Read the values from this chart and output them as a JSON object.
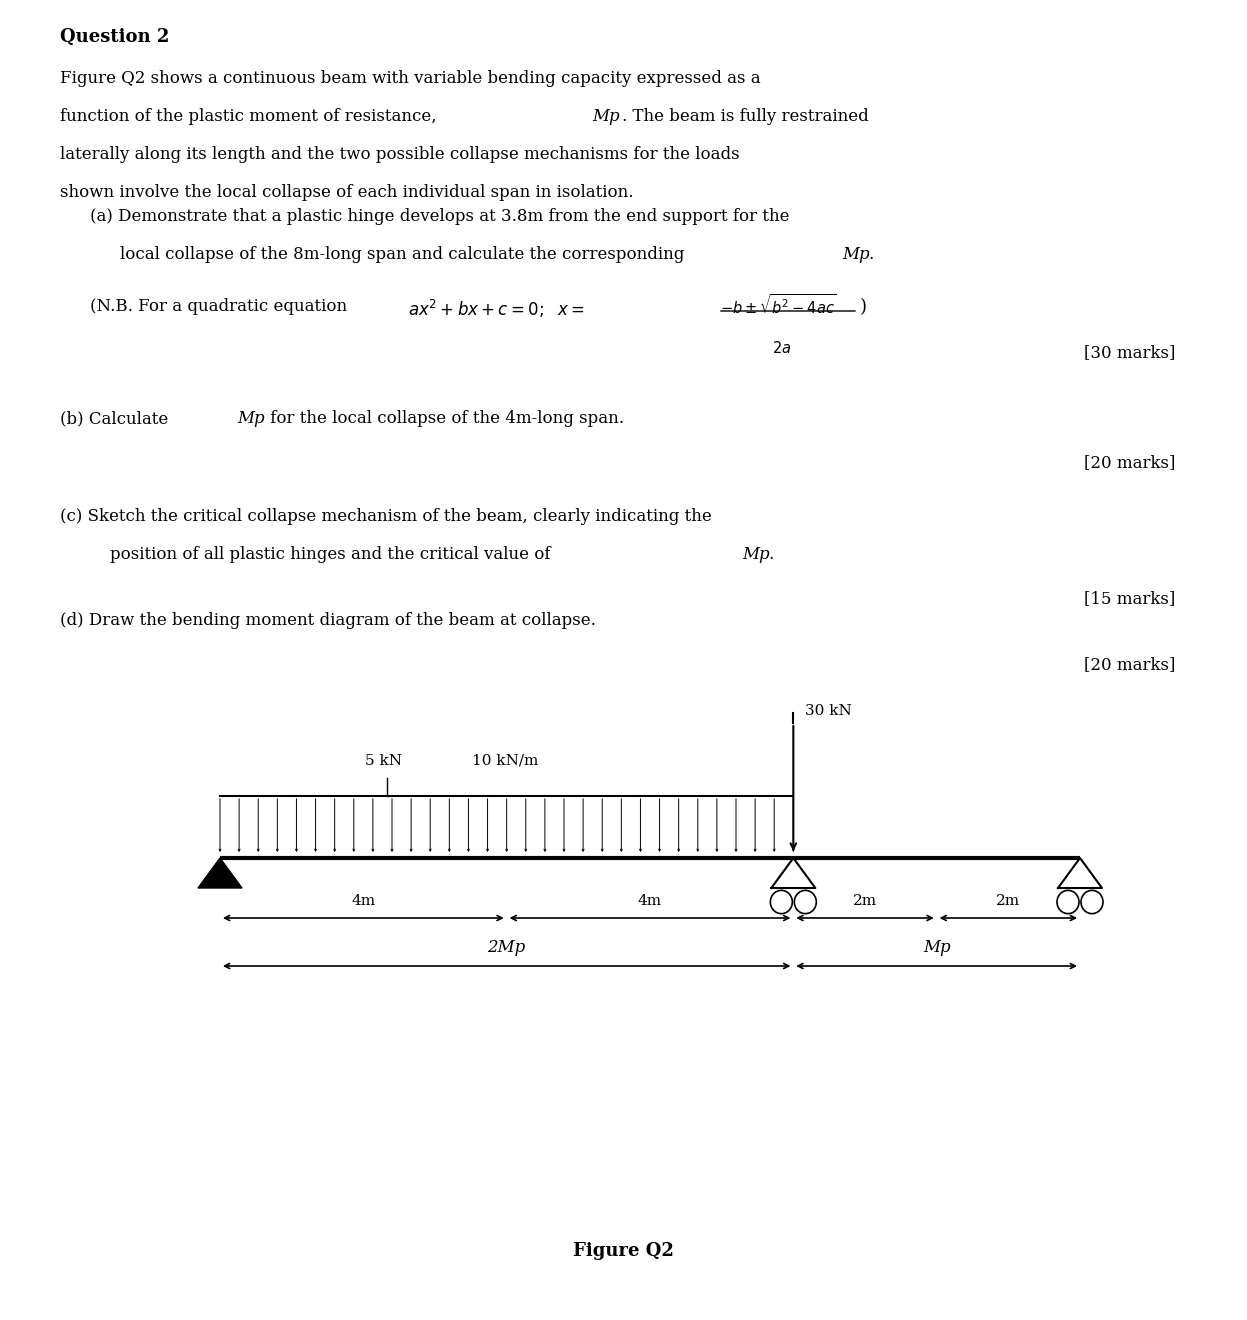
{
  "title": "Question 2",
  "background_color": "#ffffff",
  "text_color": "#000000",
  "fig_width": 12.47,
  "fig_height": 13.2,
  "figure_caption": "Figure Q2",
  "load_label_5kN": "5 kN",
  "load_label_10kNm": "10 kN/m",
  "load_label_30kN": "30 kN",
  "span_label_2Mp": "2Mp",
  "span_label_Mp": "Mp",
  "marks_a": "[30 marks]",
  "marks_b": "[20 marks]",
  "marks_c": "[15 marks]",
  "marks_d": "[20 marks]"
}
